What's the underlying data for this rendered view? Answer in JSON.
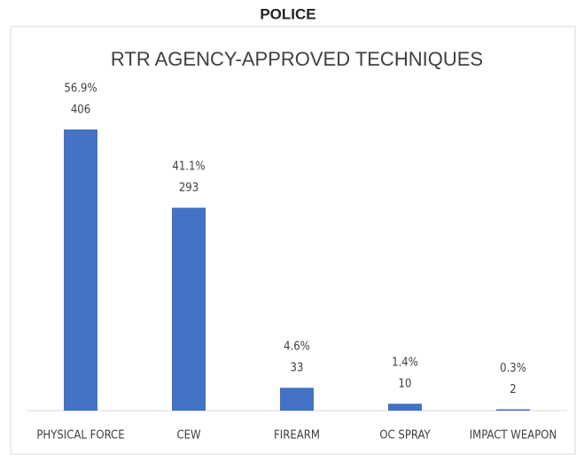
{
  "header": {
    "title": "POLICE"
  },
  "chart_data": {
    "type": "bar",
    "title": "RTR AGENCY-APPROVED TECHNIQUES",
    "categories": [
      "PHYSICAL FORCE",
      "CEW",
      "FIREARM",
      "OC SPRAY",
      "IMPACT WEAPON"
    ],
    "values": [
      406,
      293,
      33,
      10,
      2
    ],
    "shares": [
      56.9,
      41.1,
      4.6,
      1.4,
      0.3
    ],
    "share_labels": [
      "56.9%",
      "41.1%",
      "4.6%",
      "1.4%",
      "0.3%"
    ],
    "color": "#4472c4"
  }
}
